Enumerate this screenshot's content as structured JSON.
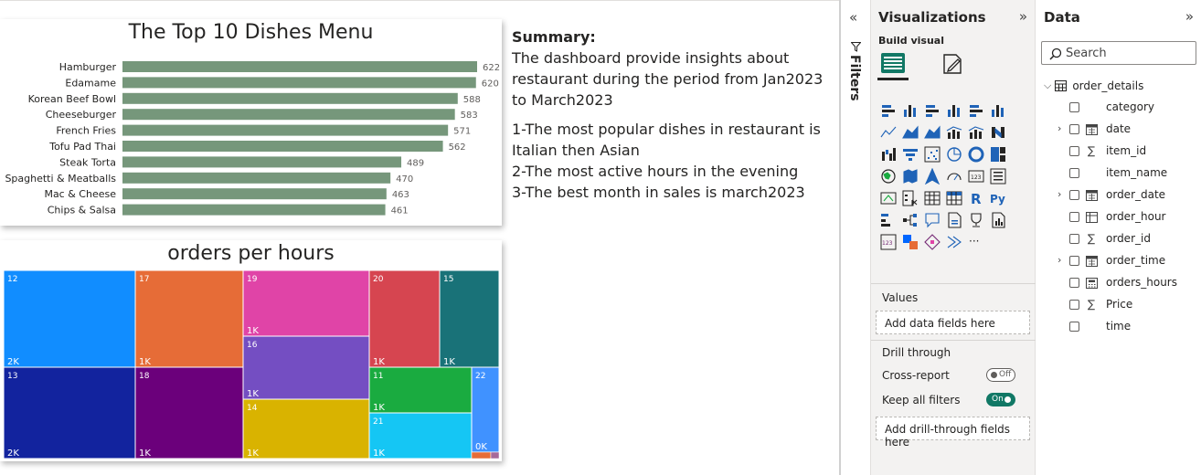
{
  "bar_chart": {
    "title": "The Top 10 Dishes Menu",
    "chart_data": {
      "type": "bar",
      "orientation": "horizontal",
      "title": "The Top 10 Dishes Menu",
      "categories": [
        "Hamburger",
        "Edamame",
        "Korean Beef Bowl",
        "Cheeseburger",
        "French Fries",
        "Tofu Pad Thai",
        "Steak Torta",
        "Spaghetti & Meatballs",
        "Mac & Cheese",
        "Chips & Salsa"
      ],
      "values": [
        622,
        620,
        588,
        583,
        571,
        562,
        489,
        470,
        463,
        461
      ],
      "color": "#76977b"
    }
  },
  "treemap": {
    "title": "orders per hours",
    "chart_data": {
      "type": "treemap",
      "title": "orders per hours",
      "items": [
        {
          "category": "12",
          "value_label": "2K",
          "color": "#118dff"
        },
        {
          "category": "13",
          "value_label": "2K",
          "color": "#12239e"
        },
        {
          "category": "17",
          "value_label": "1K",
          "color": "#e66c37"
        },
        {
          "category": "18",
          "value_label": "1K",
          "color": "#6b007b"
        },
        {
          "category": "19",
          "value_label": "1K",
          "color": "#e044a7"
        },
        {
          "category": "16",
          "value_label": "1K",
          "color": "#744ec2"
        },
        {
          "category": "14",
          "value_label": "1K",
          "color": "#d9b300"
        },
        {
          "category": "20",
          "value_label": "1K",
          "color": "#d64550"
        },
        {
          "category": "15",
          "value_label": "1K",
          "color": "#197278"
        },
        {
          "category": "11",
          "value_label": "1K",
          "color": "#1aab40"
        },
        {
          "category": "21",
          "value_label": "1K",
          "color": "#15c6f4"
        },
        {
          "category": "22",
          "value_label": "0K",
          "color": "#4092ff"
        }
      ]
    }
  },
  "summary": {
    "heading": "Summary:",
    "intro": "The dashboard provide insights about restaurant during the period from Jan2023 to March2023",
    "points": [
      "1-The most popular dishes in restaurant is Italian then Asian",
      "2-The most active hours in the evening",
      "3-The best month in sales is march2023"
    ]
  },
  "filters_pane": {
    "label": "Filters"
  },
  "visualizations_pane": {
    "title": "Visualizations",
    "build_visual": "Build visual",
    "values_label": "Values",
    "values_drop": "Add data fields here",
    "drill_through": "Drill through",
    "cross_report": "Cross-report",
    "cross_report_state": "Off",
    "keep_all_filters": "Keep all filters",
    "keep_all_filters_state": "On",
    "drill_drop": "Add drill-through fields here",
    "more_glyph": "···",
    "r_glyph": "R",
    "py_glyph": "Py",
    "num_glyph": "123"
  },
  "data_pane": {
    "title": "Data",
    "search_placeholder": "Search",
    "table_name": "order_details",
    "fields": [
      {
        "name": "category",
        "icon": "none",
        "expandable": false
      },
      {
        "name": "date",
        "icon": "calendar-icon",
        "expandable": true
      },
      {
        "name": "item_id",
        "icon": "sigma-icon",
        "expandable": false
      },
      {
        "name": "item_name",
        "icon": "none",
        "expandable": false
      },
      {
        "name": "order_date",
        "icon": "calendar-icon",
        "expandable": true
      },
      {
        "name": "order_hour",
        "icon": "calc-table-icon",
        "expandable": false
      },
      {
        "name": "order_id",
        "icon": "sigma-icon",
        "expandable": false
      },
      {
        "name": "order_time",
        "icon": "calendar-icon",
        "expandable": true
      },
      {
        "name": "orders_hours",
        "icon": "calculator-icon",
        "expandable": false
      },
      {
        "name": "Price",
        "icon": "sigma-icon",
        "expandable": false
      },
      {
        "name": "time",
        "icon": "none",
        "expandable": false
      }
    ]
  }
}
